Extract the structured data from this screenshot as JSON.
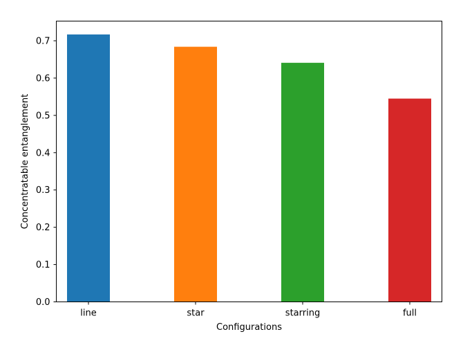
{
  "chart_data": {
    "type": "bar",
    "title": "",
    "xlabel": "Configurations",
    "ylabel": "Concentratable entanglement",
    "categories": [
      "line",
      "star",
      "starring",
      "full"
    ],
    "values": [
      0.717,
      0.684,
      0.641,
      0.545
    ],
    "colors": [
      "#1f77b4",
      "#ff7f0e",
      "#2ca02c",
      "#d62728"
    ],
    "ylim": [
      0,
      0.7528
    ],
    "yticks": [
      0.0,
      0.1,
      0.2,
      0.3,
      0.4,
      0.5,
      0.6,
      0.7
    ],
    "ytick_labels": [
      "0.0",
      "0.1",
      "0.2",
      "0.3",
      "0.4",
      "0.5",
      "0.6",
      "0.7"
    ],
    "grid": false,
    "legend": "none"
  }
}
